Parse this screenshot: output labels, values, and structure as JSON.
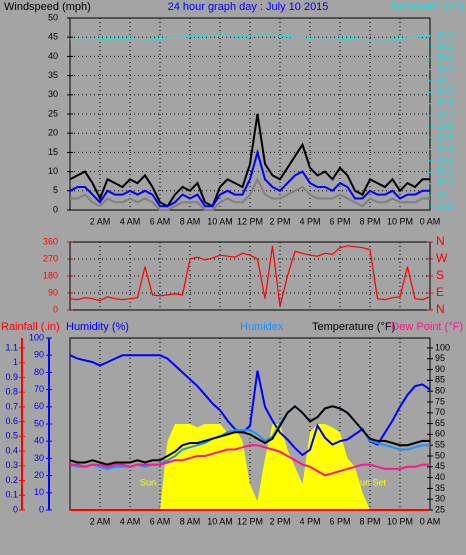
{
  "chart_data": [
    {
      "type": "line",
      "title": "24 hour graph day : July 10 2015",
      "ylabel": "Windspeed (mph)",
      "y2label": "Barometer (.in)",
      "x": [
        0,
        0.5,
        1,
        1.5,
        2,
        2.5,
        3,
        3.5,
        4,
        4.5,
        5,
        5.5,
        6,
        6.5,
        7,
        7.5,
        8,
        8.5,
        9,
        9.5,
        10,
        10.5,
        11,
        11.5,
        12,
        12.5,
        13,
        13.5,
        14,
        14.5,
        15,
        15.5,
        16,
        16.5,
        17,
        17.5,
        18,
        18.5,
        19,
        19.5,
        20,
        20.5,
        21,
        21.5,
        22,
        22.5,
        23,
        23.5,
        24
      ],
      "xlim": [
        0,
        24
      ],
      "xticks": [
        {
          "value": 2,
          "label": "2 AM"
        },
        {
          "value": 4,
          "label": "4 AM"
        },
        {
          "value": 6,
          "label": "6 AM"
        },
        {
          "value": 8,
          "label": "8 AM"
        },
        {
          "value": 10,
          "label": "10 AM"
        },
        {
          "value": 12,
          "label": "12 PM"
        },
        {
          "value": 14,
          "label": "2 PM"
        },
        {
          "value": 16,
          "label": "4 PM"
        },
        {
          "value": 18,
          "label": "6 PM"
        },
        {
          "value": 20,
          "label": "8 PM"
        },
        {
          "value": 22,
          "label": "10 PM"
        },
        {
          "value": 24,
          "label": "0 AM"
        }
      ],
      "ylim": [
        0,
        50
      ],
      "yticks": [
        0,
        5,
        10,
        15,
        20,
        25,
        30,
        35,
        40,
        45,
        50
      ],
      "y2lim": [
        28.87,
        30.55
      ],
      "y2ticks": [
        30.4,
        30.3,
        30.2,
        30.1,
        30,
        29.9,
        29.8,
        29.7,
        29.6,
        29.5,
        29.4,
        29.3,
        29.2,
        29.1,
        29,
        28.9
      ],
      "grid": true,
      "series": [
        {
          "color": "#000000",
          "values": [
            8,
            9,
            10,
            7,
            3,
            8,
            7,
            6,
            8,
            7,
            9,
            6,
            2,
            1,
            4,
            6,
            5,
            7,
            2,
            1,
            6,
            8,
            7,
            6,
            12,
            25,
            12,
            9,
            8,
            11,
            14,
            17,
            11,
            9,
            10,
            8,
            11,
            9,
            5,
            4,
            8,
            7,
            6,
            8,
            5,
            7,
            6,
            8,
            8
          ]
        },
        {
          "color": "#0000ff",
          "values": [
            5,
            6,
            6,
            4,
            2,
            5,
            4,
            4,
            5,
            4,
            5,
            4,
            1,
            1,
            2,
            4,
            3,
            4,
            1,
            1,
            4,
            5,
            4,
            4,
            8,
            15,
            8,
            6,
            5,
            7,
            9,
            10,
            7,
            6,
            6,
            5,
            7,
            6,
            3,
            3,
            5,
            4,
            4,
            5,
            3,
            4,
            4,
            5,
            5
          ]
        },
        {
          "color": "#808080",
          "values": [
            3,
            3,
            4,
            2,
            1,
            3,
            2,
            2,
            3,
            2,
            3,
            2,
            0,
            0,
            1,
            2,
            2,
            2,
            0,
            0,
            2,
            3,
            2,
            2,
            4,
            8,
            4,
            3,
            3,
            4,
            5,
            6,
            4,
            3,
            3,
            3,
            4,
            3,
            2,
            1,
            3,
            2,
            2,
            3,
            2,
            2,
            2,
            3,
            3
          ]
        },
        {
          "color": "#20e0e0",
          "axis": "y2",
          "values": [
            30.36,
            30.36,
            30.36,
            30.36,
            30.37,
            30.37,
            30.37,
            30.37,
            30.37,
            30.36,
            30.36,
            30.37,
            30.37,
            30.38,
            30.38,
            30.38,
            30.39,
            30.39,
            30.39,
            30.4,
            30.4,
            30.4,
            30.39,
            30.39,
            30.39,
            30.4,
            30.4,
            30.4,
            30.39,
            30.39,
            30.38,
            30.38,
            30.37,
            30.36,
            30.36,
            30.36,
            30.37,
            30.37,
            30.37,
            30.36,
            30.36,
            30.36,
            30.36,
            30.37,
            30.37,
            30.38,
            30.38,
            30.39,
            30.39
          ]
        }
      ]
    },
    {
      "type": "line",
      "x": [
        0,
        0.5,
        1,
        1.5,
        2,
        2.5,
        3,
        3.5,
        4,
        4.5,
        5,
        5.5,
        6,
        6.5,
        7,
        7.5,
        8,
        8.5,
        9,
        9.5,
        10,
        10.5,
        11,
        11.5,
        12,
        12.5,
        13,
        13.5,
        14,
        14.5,
        15,
        15.5,
        16,
        16.5,
        17,
        17.5,
        18,
        18.5,
        19,
        19.5,
        20,
        20.5,
        21,
        21.5,
        22,
        22.5,
        23,
        23.5,
        24
      ],
      "xlim": [
        0,
        24
      ],
      "ylim": [
        0,
        360
      ],
      "yticks": [
        0,
        90,
        180,
        270,
        360
      ],
      "y2lim": [
        0,
        360
      ],
      "y2ticks": [
        {
          "value": 360,
          "label": "N"
        },
        {
          "value": 270,
          "label": "W"
        },
        {
          "value": 180,
          "label": "S"
        },
        {
          "value": 90,
          "label": "E"
        },
        {
          "value": 0,
          "label": "N"
        }
      ],
      "grid": true,
      "series": [
        {
          "color": "#ff0000",
          "values": [
            60,
            55,
            65,
            60,
            50,
            70,
            60,
            55,
            60,
            65,
            230,
            80,
            75,
            80,
            85,
            80,
            270,
            280,
            265,
            275,
            290,
            285,
            280,
            300,
            290,
            270,
            60,
            340,
            20,
            180,
            310,
            300,
            290,
            285,
            300,
            295,
            330,
            340,
            335,
            330,
            320,
            60,
            55,
            65,
            70,
            230,
            60,
            55,
            70
          ]
        }
      ]
    },
    {
      "type": "line",
      "annotations": [
        "Sun",
        "Sun Set"
      ],
      "x": [
        0,
        0.5,
        1,
        1.5,
        2,
        2.5,
        3,
        3.5,
        4,
        4.5,
        5,
        5.5,
        6,
        6.5,
        7,
        7.5,
        8,
        8.5,
        9,
        9.5,
        10,
        10.5,
        11,
        11.5,
        12,
        12.5,
        13,
        13.5,
        14,
        14.5,
        15,
        15.5,
        16,
        16.5,
        17,
        17.5,
        18,
        18.5,
        19,
        19.5,
        20,
        20.5,
        21,
        21.5,
        22,
        22.5,
        23,
        23.5,
        24
      ],
      "xlim": [
        0,
        24
      ],
      "xticks": [
        {
          "value": 2,
          "label": "2 AM"
        },
        {
          "value": 4,
          "label": "4 AM"
        },
        {
          "value": 6,
          "label": "6 AM"
        },
        {
          "value": 8,
          "label": "8 AM"
        },
        {
          "value": 10,
          "label": "10 AM"
        },
        {
          "value": 12,
          "label": "12 PM"
        },
        {
          "value": 14,
          "label": "2 PM"
        },
        {
          "value": 16,
          "label": "4 PM"
        },
        {
          "value": 18,
          "label": "6 PM"
        },
        {
          "value": 20,
          "label": "8 PM"
        },
        {
          "value": 22,
          "label": "10 PM"
        },
        {
          "value": 24,
          "label": "0 AM"
        }
      ],
      "grid": true,
      "axes": {
        "rain": {
          "lim": [
            0,
            1.168
          ],
          "ticks": [
            0,
            0.1,
            0.2,
            0.3,
            0.4,
            0.5,
            0.6,
            0.7,
            0.8,
            0.9,
            1,
            1.1
          ],
          "color": "#0000cc",
          "line": "#ff0000"
        },
        "humidity": {
          "lim": [
            0,
            100
          ],
          "ticks": [
            0,
            10,
            20,
            30,
            40,
            50,
            60,
            70,
            80,
            90,
            100
          ],
          "color": "#0000ff",
          "line": "#0000ff"
        },
        "temp": {
          "lim": [
            25,
            104.6
          ],
          "ticks": [
            25,
            30,
            35,
            40,
            45,
            50,
            55,
            60,
            65,
            70,
            75,
            80,
            85,
            90,
            95,
            100
          ],
          "color": "#000000",
          "line": "#000000"
        }
      },
      "series": [
        {
          "color": "#ffff00",
          "axis": "humidity",
          "fill": true,
          "values": [
            0,
            0,
            0,
            0,
            0,
            0,
            0,
            0,
            0,
            0,
            0,
            0,
            0,
            40,
            50,
            50,
            50,
            48,
            50,
            50,
            50,
            45,
            48,
            40,
            15,
            5,
            30,
            50,
            50,
            35,
            25,
            15,
            45,
            50,
            50,
            48,
            45,
            30,
            25,
            10,
            0,
            0,
            0,
            0,
            0,
            0,
            0,
            0,
            0
          ]
        },
        {
          "name": "Humidity (%)",
          "color": "#0000ff",
          "axis": "humidity",
          "values": [
            90,
            88,
            87,
            86,
            84,
            86,
            88,
            90,
            90,
            90,
            90,
            90,
            90,
            88,
            84,
            80,
            76,
            72,
            67,
            62,
            58,
            52,
            47,
            45,
            49,
            81,
            60,
            52,
            45,
            41,
            36,
            32,
            35,
            49,
            42,
            38,
            40,
            41,
            44,
            47,
            40,
            38,
            45,
            52,
            60,
            67,
            72,
            73,
            70
          ]
        },
        {
          "name": "Humidex",
          "color": "#1e90ff",
          "axis": "temp",
          "values": [
            46,
            45,
            45,
            46,
            45,
            44,
            45,
            45,
            45,
            46,
            45,
            46,
            46,
            48,
            50,
            53,
            54,
            55,
            56,
            58,
            59,
            61,
            62,
            62,
            62,
            60,
            57,
            59,
            65,
            70,
            73,
            70,
            66,
            68,
            72,
            73,
            72,
            70,
            66,
            62,
            57,
            56,
            55,
            54,
            53,
            53,
            54,
            55,
            55
          ]
        },
        {
          "name": "Temperature (°F)",
          "color": "#000000",
          "axis": "temp",
          "values": [
            48,
            47,
            47,
            48,
            47,
            46,
            47,
            47,
            47,
            48,
            47,
            48,
            48,
            50,
            52,
            55,
            56,
            56,
            57,
            58,
            59,
            60,
            61,
            61,
            60,
            58,
            56,
            58,
            64,
            70,
            73,
            70,
            66,
            68,
            72,
            73,
            72,
            70,
            66,
            62,
            58,
            57,
            57,
            56,
            55,
            55,
            56,
            57,
            57
          ]
        },
        {
          "name": "Dew Point (°F)",
          "color": "#ff1493",
          "axis": "temp",
          "values": [
            46,
            46,
            45,
            46,
            46,
            45,
            46,
            46,
            45,
            46,
            46,
            46,
            46,
            47,
            48,
            48,
            49,
            50,
            50,
            51,
            52,
            53,
            53,
            54,
            55,
            55,
            54,
            53,
            52,
            50,
            48,
            46,
            45,
            43,
            41,
            42,
            43,
            44,
            45,
            46,
            46,
            45,
            44,
            44,
            44,
            45,
            45,
            46,
            46
          ]
        },
        {
          "name": "Rainfall (.in)",
          "color": "#ff0000",
          "axis": "rain",
          "values": [
            0,
            0,
            0,
            0,
            0,
            0,
            0,
            0,
            0,
            0,
            0,
            0,
            0,
            0,
            0,
            0,
            0,
            0,
            0,
            0,
            0,
            0,
            0,
            0,
            0,
            0,
            0,
            0,
            0,
            0,
            0,
            0,
            0,
            0,
            0,
            0,
            0,
            0,
            0,
            0,
            0,
            0,
            0,
            0,
            0,
            0,
            0,
            0,
            0
          ]
        }
      ]
    }
  ]
}
